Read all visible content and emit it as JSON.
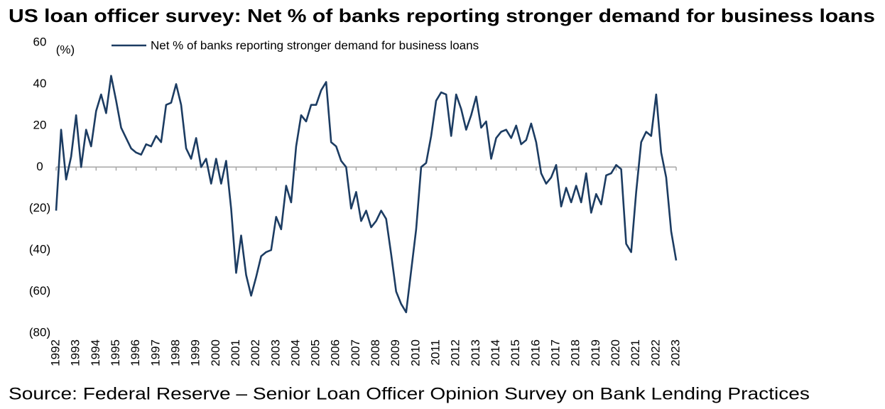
{
  "chart_data": {
    "type": "line",
    "title": "US loan officer survey: Net % of banks reporting stronger demand for business loans",
    "y_unit": "(%)",
    "source": "Source: Federal Reserve – Senior Loan Officer Opinion Survey on Bank Lending Practices",
    "categories": [
      "1992",
      null,
      null,
      null,
      "1993",
      null,
      null,
      null,
      "1994",
      null,
      null,
      null,
      "1995",
      null,
      null,
      null,
      "1996",
      null,
      null,
      null,
      "1997",
      null,
      null,
      null,
      "1998",
      null,
      null,
      null,
      "1999",
      null,
      null,
      null,
      "2000",
      null,
      null,
      null,
      "2001",
      null,
      null,
      null,
      "2002",
      null,
      null,
      null,
      "2003",
      null,
      null,
      null,
      "2004",
      null,
      null,
      null,
      "2005",
      null,
      null,
      null,
      "2006",
      null,
      null,
      null,
      "2007",
      null,
      null,
      null,
      "2008",
      null,
      null,
      null,
      "2009",
      null,
      null,
      null,
      "2010",
      null,
      null,
      null,
      "2011",
      null,
      null,
      null,
      "2012",
      null,
      null,
      null,
      "2013",
      null,
      null,
      null,
      "2014",
      null,
      null,
      null,
      "2015",
      null,
      null,
      null,
      "2016",
      null,
      null,
      null,
      "2017",
      null,
      null,
      null,
      "2018",
      null,
      null,
      null,
      "2019",
      null,
      null,
      null,
      "2020",
      null,
      null,
      null,
      "2021",
      null,
      null,
      null,
      "2022",
      null,
      null,
      null,
      "2023"
    ],
    "series": [
      {
        "name": "Net % of banks reporting stronger demand for business loans",
        "color": "#1c3c62",
        "values": [
          -21,
          18,
          -6,
          5,
          25,
          0,
          18,
          10,
          27,
          35,
          26,
          44,
          32,
          19,
          14,
          9,
          7,
          6,
          11,
          10,
          15,
          12,
          30,
          31,
          40,
          30,
          9,
          4,
          14,
          0,
          4,
          -8,
          4,
          -8,
          3,
          -20,
          -51,
          -33,
          -52,
          -62,
          -53,
          -43,
          -41,
          -40,
          -24,
          -30,
          -9,
          -17,
          10,
          25,
          22,
          30,
          30,
          37,
          41,
          12,
          10,
          3,
          0,
          -20,
          -12,
          -26,
          -21,
          -29,
          -26,
          -21,
          -25,
          -42,
          -60,
          -66,
          -70,
          -50,
          -30,
          0,
          2,
          15,
          32,
          36,
          35,
          15,
          35,
          28,
          18,
          25,
          34,
          19,
          22,
          4,
          14,
          17,
          18,
          14,
          20,
          11,
          13,
          21,
          12,
          -3,
          -8,
          -5,
          1,
          -19,
          -10,
          -17,
          -9,
          -17,
          -3,
          -22,
          -13,
          -18,
          -4,
          -3,
          1,
          -1,
          -37,
          -41,
          -12,
          12,
          17,
          15,
          35,
          7,
          -5,
          -31,
          -45
        ]
      }
    ],
    "ylim": [
      -80,
      60
    ],
    "yticks": [
      60,
      40,
      20,
      0,
      {
        "value": -20,
        "label": "(20)"
      },
      {
        "value": -40,
        "label": "(40)"
      },
      {
        "value": -60,
        "label": "(60)"
      },
      {
        "value": -80,
        "label": "(80)"
      }
    ],
    "zero_line_color": "#a6a6a6"
  }
}
